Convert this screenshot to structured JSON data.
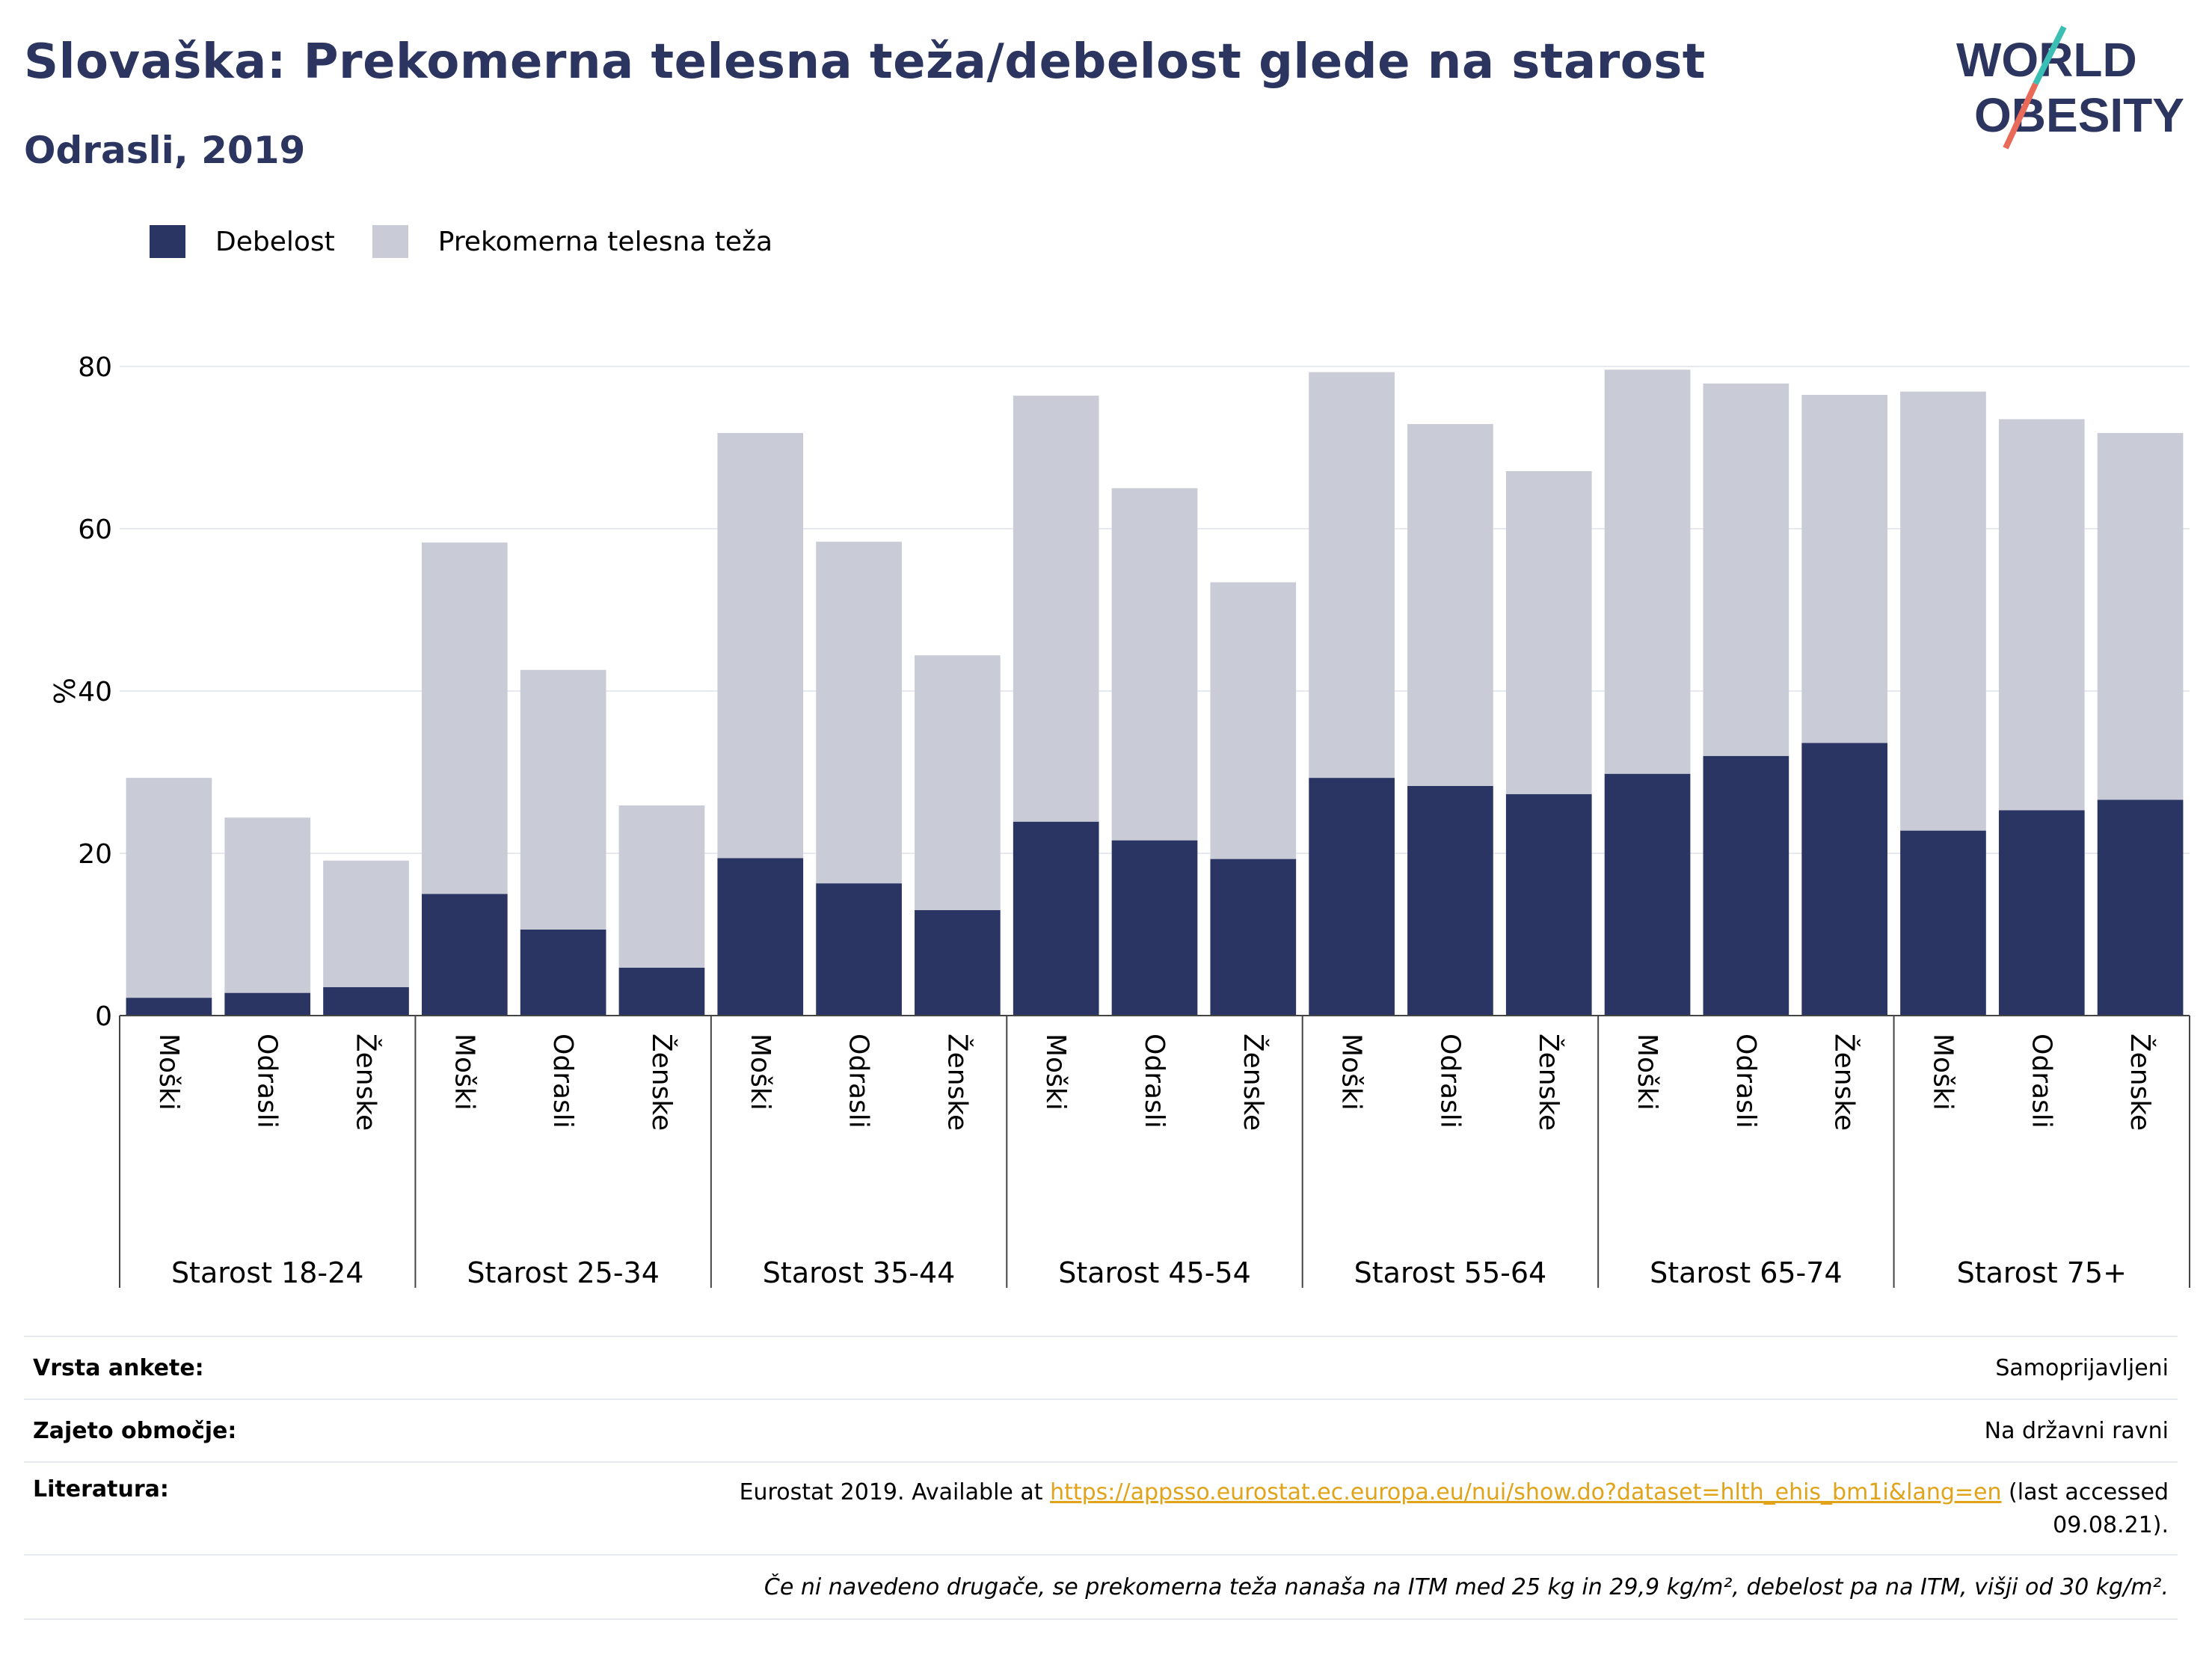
{
  "header": {
    "title": "Slovaška: Prekomerna telesna teža/debelost glede na starost",
    "subtitle": "Odrasli, 2019"
  },
  "logo": {
    "line1": "WORLD",
    "line2": "OBESITY",
    "accent_teal": "#3bbfb4",
    "accent_coral": "#ea6a5a",
    "color": "#2b3560"
  },
  "legend": {
    "items": [
      {
        "label": "Debelost",
        "color": "#2a3563"
      },
      {
        "label": "Prekomerna telesna teža",
        "color": "#c9cbd6"
      }
    ]
  },
  "chart_data": {
    "type": "bar",
    "stacked": true,
    "ylabel": "%",
    "ylim": [
      0,
      80
    ],
    "yticks": [
      0,
      20,
      40,
      60,
      80
    ],
    "grid": true,
    "legend_position": "top-left",
    "groups": [
      "Starost 18-24",
      "Starost 25-34",
      "Starost 35-44",
      "Starost 45-54",
      "Starost 55-64",
      "Starost 65-74",
      "Starost 75+"
    ],
    "subcategories": [
      "Moški",
      "Odrasli",
      "Ženske"
    ],
    "series": [
      {
        "name": "Debelost",
        "color": "#2a3563",
        "values": [
          2.2,
          2.8,
          3.5,
          15.0,
          10.6,
          5.9,
          19.4,
          16.3,
          13.0,
          23.9,
          21.6,
          19.3,
          29.3,
          28.3,
          27.3,
          29.8,
          32.0,
          33.6,
          22.8,
          25.3,
          26.6
        ]
      },
      {
        "name": "Prekomerna telesna teža",
        "color": "#c9cbd6",
        "values": [
          27.1,
          21.6,
          15.6,
          43.3,
          32.0,
          20.0,
          52.4,
          42.1,
          31.4,
          52.5,
          43.4,
          34.1,
          50.0,
          44.6,
          39.8,
          49.8,
          45.9,
          42.9,
          54.1,
          48.2,
          45.2
        ]
      }
    ]
  },
  "info": {
    "survey_label": "Vrsta ankete:",
    "survey_value": "Samoprijavljeni",
    "coverage_label": "Zajeto območje:",
    "coverage_value": "Na državni ravni",
    "references_label": "Literatura:",
    "references_prefix": "Eurostat 2019. Available at ",
    "references_link": "https://appsso.eurostat.ec.europa.eu/nui/show.do?dataset=hlth_ehis_bm1i&lang=en",
    "references_suffix": " (last accessed 09.08.21).",
    "footnote": "Če ni navedeno drugače, se prekomerna teža nanaša na ITM med 25 kg in 29,9 kg/m², debelost pa na ITM, višji od 30 kg/m²."
  }
}
